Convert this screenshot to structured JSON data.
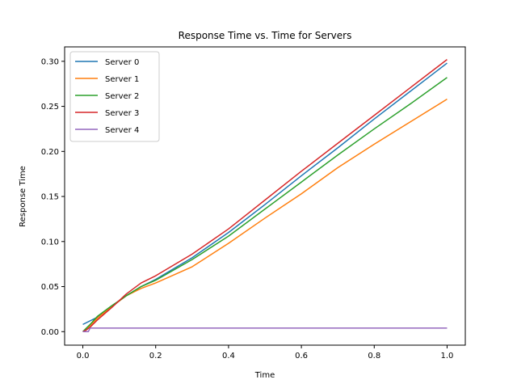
{
  "chart_data": {
    "type": "line",
    "title": "Response Time vs. Time for Servers",
    "xlabel": "Time",
    "ylabel": "Response Time",
    "xlim": [
      -0.05,
      1.05
    ],
    "ylim": [
      -0.015,
      0.316
    ],
    "xticks": [
      0.0,
      0.2,
      0.4,
      0.6,
      0.8,
      1.0
    ],
    "xtick_labels": [
      "0.0",
      "0.2",
      "0.4",
      "0.6",
      "0.8",
      "1.0"
    ],
    "yticks": [
      0.0,
      0.05,
      0.1,
      0.15,
      0.2,
      0.25,
      0.3
    ],
    "ytick_labels": [
      "0.00",
      "0.05",
      "0.10",
      "0.15",
      "0.20",
      "0.25",
      "0.30"
    ],
    "grid": false,
    "legend_position": "top-left",
    "series": [
      {
        "name": "Server 0",
        "color": "#1f77b4",
        "x": [
          0.0,
          0.04,
          0.08,
          0.12,
          0.16,
          0.2,
          0.3,
          0.4,
          0.5,
          0.6,
          0.7,
          0.8,
          0.9,
          1.0
        ],
        "y": [
          0.008,
          0.016,
          0.028,
          0.04,
          0.05,
          0.058,
          0.082,
          0.11,
          0.141,
          0.173,
          0.204,
          0.236,
          0.267,
          0.298
        ]
      },
      {
        "name": "Server 1",
        "color": "#ff7f0e",
        "x": [
          0.0,
          0.01,
          0.02,
          0.04,
          0.08,
          0.12,
          0.16,
          0.2,
          0.3,
          0.4,
          0.5,
          0.6,
          0.7,
          0.8,
          0.9,
          1.0
        ],
        "y": [
          0.0,
          0.003,
          0.007,
          0.015,
          0.028,
          0.04,
          0.048,
          0.054,
          0.072,
          0.098,
          0.126,
          0.153,
          0.182,
          0.208,
          0.233,
          0.258
        ]
      },
      {
        "name": "Server 2",
        "color": "#2ca02c",
        "x": [
          0.0,
          0.01,
          0.02,
          0.04,
          0.08,
          0.12,
          0.16,
          0.2,
          0.3,
          0.4,
          0.5,
          0.6,
          0.7,
          0.8,
          0.9,
          1.0
        ],
        "y": [
          0.0,
          0.004,
          0.008,
          0.017,
          0.029,
          0.04,
          0.05,
          0.057,
          0.08,
          0.106,
          0.136,
          0.166,
          0.196,
          0.225,
          0.253,
          0.282
        ]
      },
      {
        "name": "Server 3",
        "color": "#d62728",
        "x": [
          0.0,
          0.01,
          0.02,
          0.04,
          0.08,
          0.12,
          0.16,
          0.2,
          0.3,
          0.4,
          0.5,
          0.6,
          0.7,
          0.8,
          0.9,
          1.0
        ],
        "y": [
          0.0,
          0.002,
          0.005,
          0.013,
          0.027,
          0.042,
          0.054,
          0.062,
          0.086,
          0.114,
          0.146,
          0.178,
          0.209,
          0.24,
          0.271,
          0.302
        ]
      },
      {
        "name": "Server 4",
        "color": "#9467bd",
        "x": [
          0.0,
          0.015,
          0.02,
          0.03,
          0.1,
          0.3,
          0.5,
          0.7,
          0.9,
          1.0
        ],
        "y": [
          0.0,
          0.0,
          0.004,
          0.004,
          0.004,
          0.004,
          0.004,
          0.004,
          0.004,
          0.004
        ]
      }
    ]
  }
}
